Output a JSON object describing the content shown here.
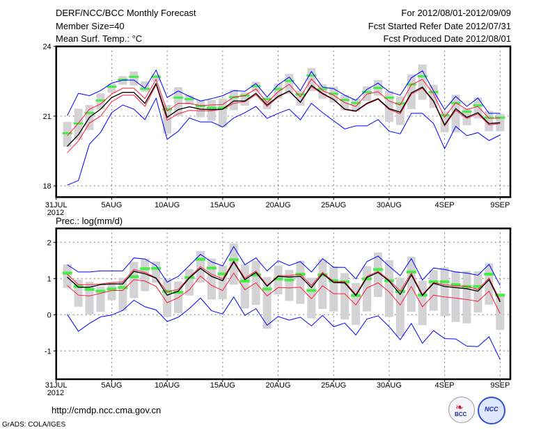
{
  "header": {
    "title": "DERF/NCC/BCC Monthly Forecast",
    "member_size": "Member Size=40",
    "period": "For 2012/08/01-2012/09/09",
    "started": "Fcst Started Refer Date 2012/07/31",
    "produced": "Fcst Produced Date 2012/08/01"
  },
  "footer": {
    "url": "http://cmdp.ncc.cma.gov.cn",
    "credit": "GrADS: COLA/IGES",
    "logos": [
      "BCC",
      "NCC"
    ]
  },
  "colors": {
    "gray": "#d3d3d6",
    "green": "#44ee44",
    "blue": "#0000ff",
    "red": "#ff1a3a",
    "black": "#000000"
  },
  "chart_data": [
    {
      "type": "line",
      "title": "Mean Surf. Temp.: °C",
      "xlabel": "",
      "ylabel": "",
      "ylim": [
        17.5,
        24
      ],
      "yticks": [
        "24",
        "21",
        "18"
      ],
      "ytick_values": [
        24,
        21,
        18
      ],
      "xticks": [
        "31JUL",
        "5AUG",
        "10AUG",
        "15AUG",
        "20AUG",
        "25AUG",
        "30AUG",
        "4SEP",
        "9SEP"
      ],
      "xtick_days": [
        0,
        5,
        10,
        15,
        20,
        25,
        30,
        35,
        40
      ],
      "xtick_year": "2012",
      "days": "2012-08-01 .. 2012-09-09 (40 days)",
      "grid": true,
      "series": {
        "box_high": [
          20.75,
          21.32,
          21.48,
          21.98,
          22.4,
          22.72,
          22.92,
          22.5,
          22.8,
          21.48,
          22.25,
          21.9,
          21.7,
          21.7,
          21.75,
          22.15,
          22.02,
          22.48,
          21.8,
          22.4,
          22.82,
          22.1,
          23.07,
          22.37,
          22.27,
          21.92,
          21.75,
          22.28,
          22.55,
          22.08,
          21.85,
          22.8,
          23.22,
          22.35,
          21.2,
          21.92,
          21.35,
          21.8,
          21.22,
          21.1
        ],
        "box_low": [
          19.68,
          19.98,
          20.4,
          21.3,
          22.0,
          22.35,
          22.32,
          22.05,
          22.5,
          20.25,
          21.0,
          21.5,
          20.95,
          20.8,
          20.52,
          21.25,
          21.45,
          22.05,
          21.3,
          21.75,
          21.95,
          21.45,
          22.08,
          21.75,
          21.58,
          21.25,
          21.2,
          21.65,
          21.88,
          20.75,
          20.62,
          21.3,
          21.7,
          21.35,
          20.3,
          20.3,
          20.6,
          20.9,
          20.35,
          20.35
        ],
        "obs": [
          20.25,
          20.67,
          21.12,
          21.66,
          22.25,
          22.55,
          22.68,
          22.16,
          22.68,
          21.28,
          21.78,
          21.72,
          21.42,
          21.35,
          21.35,
          21.8,
          21.87,
          22.27,
          21.72,
          22.15,
          22.5,
          21.92,
          22.73,
          22.15,
          21.95,
          21.68,
          21.55,
          22.02,
          22.2,
          21.78,
          21.53,
          22.35,
          22.7,
          22.02,
          21.02,
          21.55,
          21.18,
          21.45,
          20.92,
          20.92
        ],
        "blue_max": [
          21.02,
          21.98,
          21.88,
          22.1,
          22.42,
          22.55,
          22.55,
          22.2,
          22.98,
          21.8,
          22.08,
          21.85,
          21.65,
          21.75,
          21.88,
          22.1,
          22.07,
          22.4,
          21.82,
          22.35,
          22.68,
          22.1,
          22.92,
          22.25,
          22.18,
          21.9,
          21.68,
          22.15,
          22.42,
          22.05,
          21.9,
          22.65,
          22.95,
          22.08,
          21.28,
          21.85,
          21.42,
          21.78,
          21.12,
          21.12
        ],
        "blue_min": [
          18.03,
          18.23,
          19.8,
          20.3,
          21.15,
          21.48,
          21.3,
          20.85,
          21.77,
          20.0,
          20.35,
          20.92,
          20.75,
          20.75,
          20.53,
          20.92,
          21.15,
          21.42,
          20.9,
          21.12,
          21.3,
          20.84,
          21.55,
          21.15,
          20.8,
          20.45,
          20.58,
          20.58,
          20.85,
          20.35,
          20.24,
          21.12,
          21.12,
          20.68,
          19.6,
          20.56,
          20.16,
          20.29,
          19.95,
          20.19
        ],
        "red_upper": [
          20.15,
          20.7,
          21.3,
          21.52,
          21.95,
          22.2,
          22.2,
          21.75,
          22.58,
          21.22,
          21.55,
          21.55,
          21.45,
          21.48,
          21.5,
          21.82,
          21.88,
          22.17,
          21.58,
          22.05,
          22.37,
          21.82,
          22.6,
          22.1,
          21.9,
          21.58,
          21.42,
          21.95,
          22.05,
          21.65,
          21.48,
          22.35,
          22.58,
          21.95,
          20.95,
          21.58,
          21.28,
          21.42,
          20.9,
          20.92
        ],
        "red_lower": [
          19.42,
          19.93,
          20.7,
          21.0,
          21.62,
          21.9,
          21.9,
          21.42,
          22.35,
          20.82,
          21.1,
          21.25,
          21.23,
          21.23,
          21.3,
          21.55,
          21.62,
          21.92,
          21.42,
          21.82,
          22.07,
          21.58,
          22.27,
          21.95,
          21.7,
          21.28,
          21.2,
          21.52,
          21.72,
          21.28,
          21.1,
          21.95,
          22.2,
          21.62,
          20.58,
          21.25,
          20.9,
          21.1,
          20.62,
          20.68
        ],
        "mean": [
          19.7,
          20.2,
          20.95,
          21.3,
          21.8,
          22.02,
          22.02,
          21.55,
          22.4,
          20.95,
          21.28,
          21.4,
          21.3,
          21.28,
          21.3,
          21.65,
          21.65,
          21.98,
          21.48,
          21.85,
          22.08,
          21.6,
          22.32,
          21.98,
          21.72,
          21.3,
          21.22,
          21.55,
          21.75,
          21.32,
          21.17,
          22.0,
          22.25,
          21.65,
          20.62,
          21.32,
          20.95,
          21.15,
          20.68,
          20.72
        ]
      }
    },
    {
      "type": "line",
      "title": "Prec.: log(mm/d)",
      "xlabel": "",
      "ylabel": "",
      "ylim": [
        -1.78,
        2.38
      ],
      "yticks": [
        "2",
        "1",
        "0",
        "-1"
      ],
      "ytick_values": [
        2,
        1,
        0,
        -1
      ],
      "xticks": [
        "31JUL",
        "5AUG",
        "10AUG",
        "15AUG",
        "20AUG",
        "25AUG",
        "30AUG",
        "4SEP",
        "9SEP"
      ],
      "xtick_days": [
        0,
        5,
        10,
        15,
        20,
        25,
        30,
        35,
        40
      ],
      "xtick_year": "2012",
      "grid": true,
      "series": {
        "box_high": [
          1.39,
          0.97,
          0.91,
          0.78,
          0.88,
          1.02,
          1.46,
          1.55,
          1.47,
          0.99,
          0.92,
          1.26,
          1.76,
          1.55,
          1.36,
          1.97,
          1.39,
          1.49,
          1.04,
          1.36,
          1.24,
          1.49,
          1.02,
          1.53,
          1.34,
          1.15,
          0.88,
          1.34,
          1.72,
          1.51,
          1.02,
          1.6,
          0.94,
          1.23,
          1.31,
          1.2,
          1.21,
          1.2,
          1.42,
          0.59
        ],
        "box_low": [
          0.74,
          0.22,
          0.01,
          0.08,
          0.4,
          0.11,
          0.46,
          0.65,
          0.88,
          -0.06,
          0.04,
          0.53,
          0.89,
          0.42,
          0.43,
          0.83,
          0.17,
          0.27,
          -0.39,
          0.56,
          0.38,
          0.3,
          -0.1,
          0.16,
          0.09,
          -0.13,
          -0.28,
          0.09,
          0.49,
          -0.06,
          -0.6,
          0.08,
          -0.29,
          0.11,
          -0.04,
          -0.2,
          -0.24,
          0.06,
          0.28,
          -0.42
        ],
        "obs": [
          1.15,
          0.78,
          0.7,
          0.65,
          0.71,
          0.75,
          1.05,
          1.27,
          1.28,
          0.64,
          0.62,
          1.03,
          1.53,
          1.29,
          1.13,
          1.52,
          0.93,
          1.1,
          0.71,
          0.99,
          0.96,
          1.12,
          0.67,
          1.1,
          0.94,
          0.91,
          0.53,
          0.99,
          1.25,
          0.94,
          0.64,
          1.18,
          0.54,
          0.91,
          0.91,
          0.83,
          0.78,
          0.78,
          1.12,
          0.54
        ],
        "blue_max": [
          1.38,
          1.18,
          1.18,
          1.21,
          1.21,
          1.21,
          1.57,
          1.54,
          1.36,
          0.9,
          1.06,
          1.36,
          1.67,
          1.46,
          1.35,
          1.88,
          1.38,
          1.57,
          1.21,
          1.49,
          1.36,
          1.47,
          1.18,
          1.55,
          1.31,
          1.31,
          0.99,
          1.47,
          1.62,
          1.34,
          1.08,
          1.55,
          0.96,
          1.29,
          1.25,
          1.18,
          1.15,
          1.09,
          1.39,
          0.81
        ],
        "blue_min": [
          0.01,
          -0.46,
          -0.24,
          -0.06,
          -0.01,
          0.12,
          0.4,
          0.22,
          0.13,
          -0.19,
          -0.07,
          0.17,
          0.46,
          0.11,
          0.02,
          0.49,
          -0.02,
          0.17,
          -0.29,
          -0.05,
          -0.15,
          -0.07,
          -0.31,
          -0.02,
          -0.33,
          -0.23,
          -0.56,
          -0.12,
          -0.03,
          -0.33,
          -0.69,
          -0.24,
          -0.79,
          -0.44,
          -0.66,
          -0.67,
          -0.87,
          -0.88,
          -0.61,
          -1.24
        ],
        "red_upper": [
          1.12,
          0.83,
          0.83,
          0.85,
          0.89,
          0.9,
          1.25,
          1.17,
          1.02,
          0.63,
          0.7,
          1.04,
          1.33,
          1.12,
          0.99,
          1.49,
          1.01,
          1.21,
          0.81,
          1.08,
          1.08,
          1.12,
          0.81,
          1.17,
          0.92,
          0.91,
          0.56,
          1.06,
          1.2,
          0.96,
          0.65,
          1.15,
          0.56,
          0.89,
          0.83,
          0.8,
          0.78,
          0.7,
          1.01,
          0.4
        ],
        "red_lower": [
          0.81,
          0.54,
          0.52,
          0.59,
          0.67,
          0.67,
          0.97,
          0.93,
          0.78,
          0.33,
          0.47,
          0.69,
          1.07,
          0.81,
          0.67,
          1.15,
          0.69,
          0.88,
          0.52,
          0.75,
          0.74,
          0.76,
          0.44,
          0.8,
          0.58,
          0.58,
          0.27,
          0.74,
          0.88,
          0.63,
          0.27,
          0.78,
          0.22,
          0.54,
          0.49,
          0.46,
          0.42,
          0.37,
          0.65,
          0.03
        ],
        "mean": [
          1.04,
          0.76,
          0.76,
          0.83,
          0.85,
          0.85,
          1.2,
          1.13,
          1.01,
          0.54,
          0.65,
          1.02,
          1.28,
          1.06,
          0.94,
          1.46,
          0.97,
          1.17,
          0.79,
          1.06,
          1.04,
          1.06,
          0.75,
          1.13,
          0.89,
          0.88,
          0.53,
          1.03,
          1.17,
          0.93,
          0.56,
          1.1,
          0.53,
          0.87,
          0.78,
          0.75,
          0.72,
          0.65,
          0.97,
          0.35
        ]
      }
    }
  ]
}
